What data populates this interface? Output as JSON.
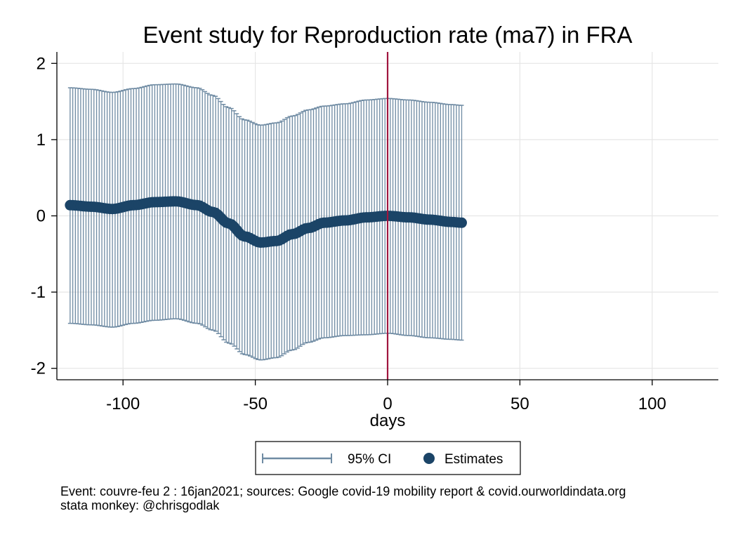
{
  "chart_data": {
    "type": "scatter",
    "title": "Event study for Reproduction rate (ma7) in FRA",
    "xlabel": "days",
    "ylabel": "",
    "xlim": [
      -125,
      125
    ],
    "ylim": [
      -2.15,
      2.15
    ],
    "xticks": [
      -100,
      -50,
      0,
      50,
      100
    ],
    "yticks": [
      -2,
      -1,
      0,
      1,
      2
    ],
    "xtick_labels": [
      "-100",
      "-50",
      "0",
      "50",
      "100"
    ],
    "ytick_labels": [
      "-2",
      "-1",
      "0",
      "1",
      "2"
    ],
    "grid": true,
    "event_line_x": 0,
    "legend": {
      "placement": "bottom-center",
      "entries": [
        "95% CI",
        "Estimates"
      ]
    },
    "colors": {
      "ci": "#6f8ba3",
      "estimates": "#1b4467",
      "event_line": "#a0153e",
      "grid": "#e6e6e6"
    },
    "estimate_knots": [
      [
        -120,
        0.14
      ],
      [
        -112,
        0.12
      ],
      [
        -104,
        0.09
      ],
      [
        -96,
        0.14
      ],
      [
        -88,
        0.18
      ],
      [
        -80,
        0.19
      ],
      [
        -72,
        0.14
      ],
      [
        -66,
        0.05
      ],
      [
        -60,
        -0.1
      ],
      [
        -54,
        -0.27
      ],
      [
        -48,
        -0.35
      ],
      [
        -42,
        -0.33
      ],
      [
        -36,
        -0.24
      ],
      [
        -30,
        -0.16
      ],
      [
        -24,
        -0.09
      ],
      [
        -16,
        -0.06
      ],
      [
        -8,
        -0.02
      ],
      [
        0,
        0.0
      ],
      [
        8,
        -0.02
      ],
      [
        16,
        -0.05
      ],
      [
        24,
        -0.08
      ],
      [
        28,
        -0.09
      ]
    ],
    "ci_upper_knots": [
      [
        -120,
        1.68
      ],
      [
        -112,
        1.66
      ],
      [
        -104,
        1.62
      ],
      [
        -96,
        1.67
      ],
      [
        -88,
        1.72
      ],
      [
        -80,
        1.73
      ],
      [
        -72,
        1.68
      ],
      [
        -66,
        1.58
      ],
      [
        -60,
        1.42
      ],
      [
        -54,
        1.26
      ],
      [
        -48,
        1.19
      ],
      [
        -42,
        1.22
      ],
      [
        -36,
        1.31
      ],
      [
        -30,
        1.39
      ],
      [
        -24,
        1.44
      ],
      [
        -16,
        1.47
      ],
      [
        -8,
        1.52
      ],
      [
        0,
        1.54
      ],
      [
        8,
        1.52
      ],
      [
        16,
        1.49
      ],
      [
        24,
        1.46
      ],
      [
        28,
        1.45
      ]
    ],
    "ci_lower_knots": [
      [
        -120,
        -1.41
      ],
      [
        -112,
        -1.43
      ],
      [
        -104,
        -1.46
      ],
      [
        -96,
        -1.41
      ],
      [
        -88,
        -1.37
      ],
      [
        -80,
        -1.35
      ],
      [
        -72,
        -1.41
      ],
      [
        -66,
        -1.5
      ],
      [
        -60,
        -1.67
      ],
      [
        -54,
        -1.82
      ],
      [
        -48,
        -1.89
      ],
      [
        -42,
        -1.86
      ],
      [
        -36,
        -1.76
      ],
      [
        -30,
        -1.66
      ],
      [
        -24,
        -1.6
      ],
      [
        -16,
        -1.57
      ],
      [
        -8,
        -1.56
      ],
      [
        0,
        -1.54
      ],
      [
        8,
        -1.57
      ],
      [
        16,
        -1.6
      ],
      [
        24,
        -1.62
      ],
      [
        28,
        -1.63
      ]
    ]
  },
  "notes": {
    "line1": "Event: couvre-feu 2 : 16jan2021; sources: Google covid-19 mobility report & covid.ourworldindata.org",
    "line2": "stata monkey: @chrisgodlak"
  }
}
